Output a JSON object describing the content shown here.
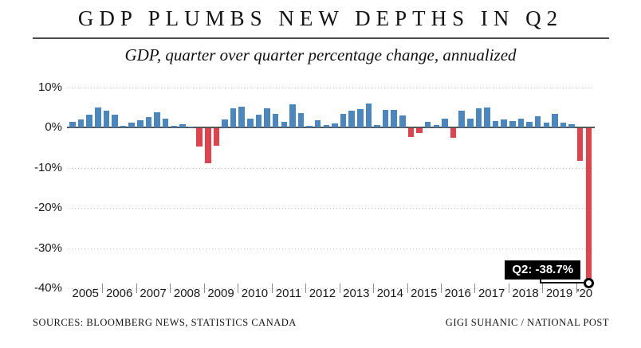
{
  "header": {
    "title": "GDP PLUMBS NEW DEPTHS IN Q2",
    "subtitle": "GDP, quarter over quarter percentage change, annualized"
  },
  "chart_data": {
    "type": "bar",
    "title": "GDP PLUMBS NEW DEPTHS IN Q2",
    "subtitle": "GDP, quarter over quarter percentage change, annualized",
    "unit": "percent, quarter over quarter annualized",
    "ylim": [
      -40,
      10
    ],
    "y_tick_values": [
      10,
      0,
      -10,
      -20,
      -30,
      -40
    ],
    "y_tick_labels": [
      "10%",
      "0%",
      "-10%",
      "-20%",
      "-30%",
      "-40%"
    ],
    "grid": "dotted horizontal gridlines, solid zero baseline",
    "legend": "none",
    "year_labels": [
      "2005",
      "2006",
      "2007",
      "2008",
      "2009",
      "2010",
      "2011",
      "2012",
      "2013",
      "2014",
      "2015",
      "2016",
      "2017",
      "2018",
      "2019",
      "'20"
    ],
    "quarters_per_year": [
      4,
      4,
      4,
      4,
      4,
      4,
      4,
      4,
      4,
      4,
      4,
      4,
      4,
      4,
      4,
      2
    ],
    "series": [
      {
        "name": "GDP quarter over quarter percentage change, annualized",
        "values": [
          1.4,
          2.0,
          3.2,
          5.0,
          4.2,
          3.2,
          0.4,
          1.2,
          1.8,
          2.6,
          3.8,
          2.2,
          0.3,
          0.7,
          0.2,
          -4.5,
          -8.7,
          -4.3,
          1.9,
          4.8,
          5.1,
          2.2,
          3.2,
          4.8,
          3.3,
          1.3,
          5.8,
          3.5,
          0.3,
          1.8,
          0.5,
          1.0,
          3.3,
          4.2,
          4.6,
          5.9,
          0.5,
          4.4,
          4.4,
          2.9,
          -2.1,
          -1.2,
          1.4,
          0.6,
          2.1,
          -2.4,
          4.2,
          2.2,
          4.8,
          5.0,
          1.6,
          1.9,
          1.6,
          2.2,
          1.4,
          2.7,
          1.2,
          3.4,
          1.1,
          0.7,
          -8.2,
          -38.7
        ]
      }
    ],
    "colors": {
      "positive": "#4a86c0",
      "negative": "#e2424b"
    },
    "annotation": {
      "label": "Q2: -38.7%",
      "value": -38.7,
      "target_index": 61
    }
  },
  "footer": {
    "sources": "SOURCES: BLOOMBERG NEWS, STATISTICS CANADA",
    "credit": "GIGI SUHANIC / NATIONAL POST"
  }
}
